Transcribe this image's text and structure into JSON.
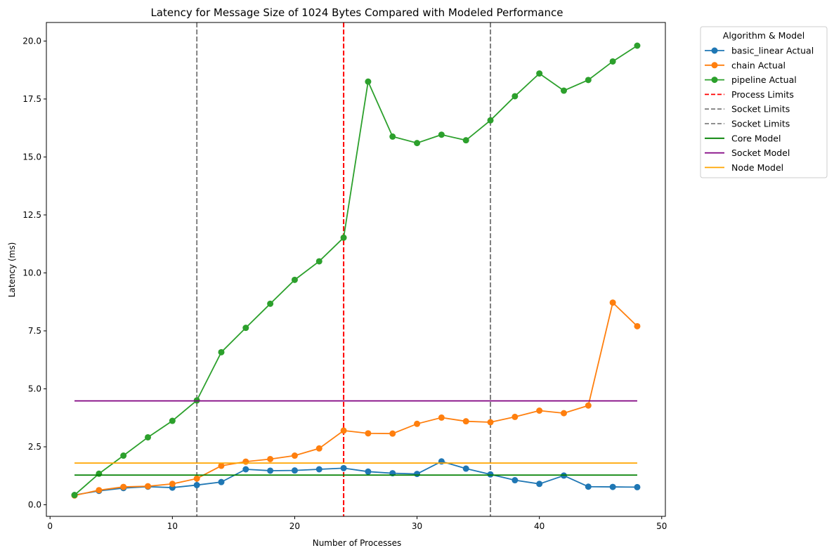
{
  "chart_data": {
    "type": "line",
    "title": "Latency for Message Size of 1024 Bytes Compared with Modeled Performance",
    "xlabel": "Number of Processes",
    "ylabel": "Latency (ms)",
    "xlim": [
      -0.3,
      50.3
    ],
    "ylim": [
      -0.5,
      20.8
    ],
    "xticks": [
      0,
      10,
      20,
      30,
      40,
      50
    ],
    "xtick_labels": [
      "0",
      "10",
      "20",
      "30",
      "40",
      "50"
    ],
    "yticks": [
      0,
      2.5,
      5,
      7.5,
      10,
      12.5,
      15,
      17.5,
      20
    ],
    "ytick_labels": [
      "0.0",
      "2.5",
      "5.0",
      "7.5",
      "10.0",
      "12.5",
      "15.0",
      "17.5",
      "20.0"
    ],
    "grid": false,
    "legend_title": "Algorithm & Model",
    "legend_position": "outside-top-right",
    "x": [
      2,
      4,
      6,
      8,
      10,
      12,
      14,
      16,
      18,
      20,
      22,
      24,
      26,
      28,
      30,
      32,
      34,
      36,
      38,
      40,
      42,
      44,
      46,
      48
    ],
    "series": [
      {
        "name": "basic_linear Actual",
        "color": "#1f77b4",
        "style": "line-marker",
        "values": [
          0.42,
          0.6,
          0.72,
          0.78,
          0.74,
          0.85,
          0.98,
          1.53,
          1.47,
          1.48,
          1.53,
          1.58,
          1.43,
          1.36,
          1.33,
          1.87,
          1.56,
          1.31,
          1.06,
          0.9,
          1.26,
          0.78,
          0.77,
          0.76
        ]
      },
      {
        "name": "chain Actual",
        "color": "#ff7f0e",
        "style": "line-marker",
        "values": [
          0.4,
          0.63,
          0.77,
          0.8,
          0.9,
          1.13,
          1.68,
          1.86,
          1.97,
          2.12,
          2.43,
          3.2,
          3.08,
          3.07,
          3.49,
          3.76,
          3.6,
          3.56,
          3.79,
          4.06,
          3.95,
          4.28,
          8.72,
          7.7
        ]
      },
      {
        "name": "pipeline Actual",
        "color": "#2ca02c",
        "style": "line-marker",
        "values": [
          0.42,
          1.34,
          2.12,
          2.91,
          3.62,
          4.5,
          6.58,
          7.63,
          8.67,
          9.7,
          10.5,
          11.52,
          18.25,
          15.88,
          15.6,
          15.96,
          15.72,
          16.58,
          17.62,
          18.6,
          17.86,
          18.32,
          19.12,
          19.8
        ]
      }
    ],
    "vertical_lines": [
      {
        "name": "Process Limits",
        "x": 24,
        "color": "#ff0000",
        "style": "dashed"
      },
      {
        "name": "Socket Limits",
        "x": 12,
        "color": "#808080",
        "style": "dashed"
      },
      {
        "name": "Socket Limits",
        "x": 36,
        "color": "#808080",
        "style": "dashed"
      }
    ],
    "horizontal_lines": [
      {
        "name": "Core Model",
        "y": 1.28,
        "color": "#008000",
        "x_range": [
          2,
          48
        ]
      },
      {
        "name": "Socket Model",
        "y": 4.48,
        "color": "#800080",
        "x_range": [
          2,
          48
        ]
      },
      {
        "name": "Node Model",
        "y": 1.8,
        "color": "#ffa500",
        "x_range": [
          2,
          48
        ]
      }
    ],
    "legend_entries": [
      {
        "label": "basic_linear Actual",
        "color": "#1f77b4",
        "style": "line-marker"
      },
      {
        "label": "chain Actual",
        "color": "#ff7f0e",
        "style": "line-marker"
      },
      {
        "label": "pipeline Actual",
        "color": "#2ca02c",
        "style": "line-marker"
      },
      {
        "label": "Process Limits",
        "color": "#ff0000",
        "style": "dashed"
      },
      {
        "label": "Socket Limits",
        "color": "#808080",
        "style": "dashed"
      },
      {
        "label": "Socket Limits",
        "color": "#808080",
        "style": "dashed"
      },
      {
        "label": "Core Model",
        "color": "#008000",
        "style": "solid"
      },
      {
        "label": "Socket Model",
        "color": "#800080",
        "style": "solid"
      },
      {
        "label": "Node Model",
        "color": "#ffa500",
        "style": "solid"
      }
    ]
  }
}
